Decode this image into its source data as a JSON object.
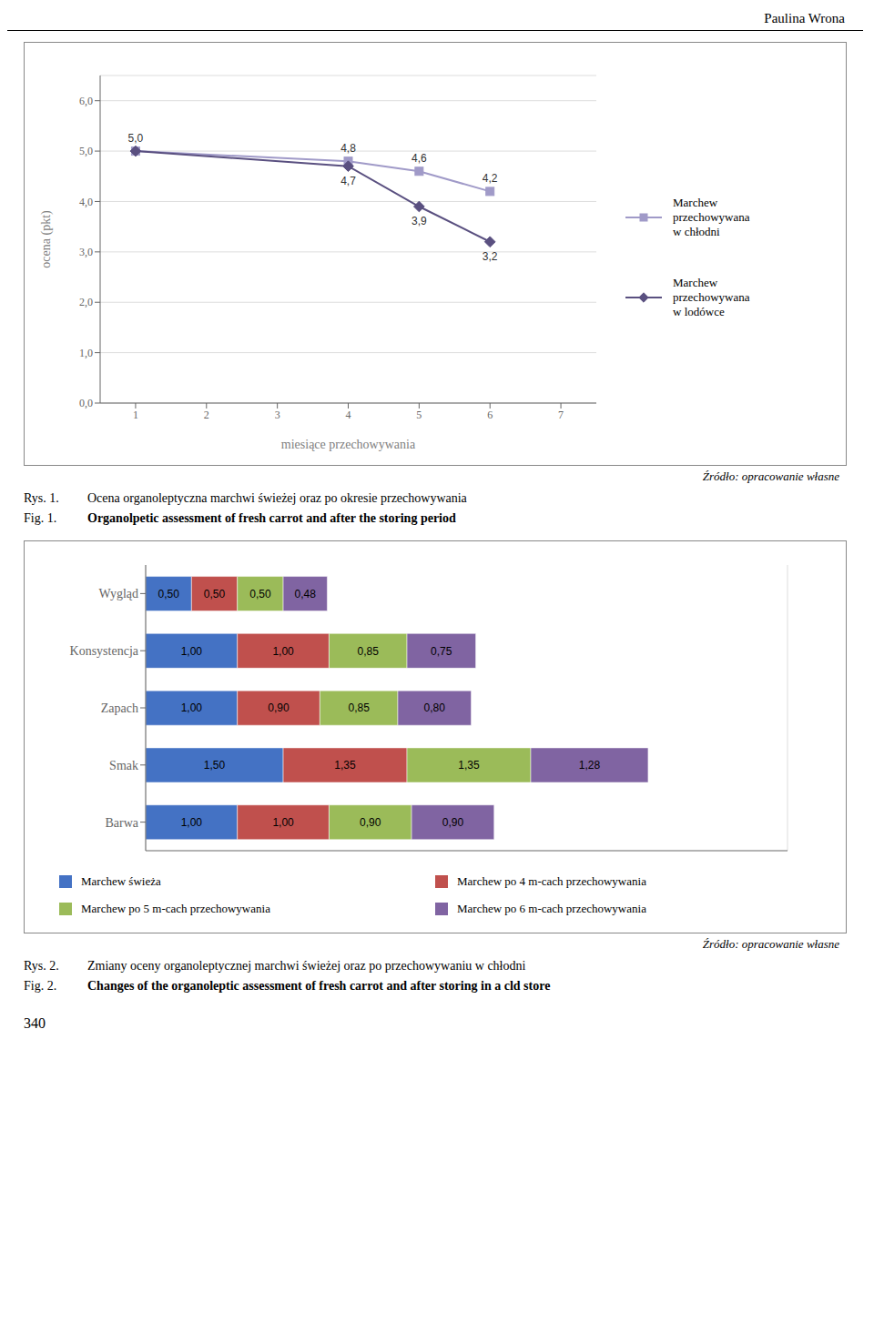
{
  "chart_data": [
    {
      "type": "line",
      "x": [
        1,
        4,
        5,
        6
      ],
      "series": [
        {
          "name": "Marchew\nprzechowywana\nw chłodni",
          "color": "#a09ac8",
          "marker": "square",
          "line_style": "solid",
          "values": [
            5.0,
            4.8,
            4.6,
            4.2
          ],
          "value_labels": [
            "5,0",
            "4,8",
            "4,6",
            "4,2"
          ]
        },
        {
          "name": "Marchew\nprzechowywana\nw lodówce",
          "color": "#5a5080",
          "marker": "diamond",
          "line_style": "solid",
          "values": [
            5.0,
            4.7,
            3.9,
            3.2
          ],
          "value_labels": [
            null,
            "4,7",
            "3,9",
            "3,2"
          ]
        }
      ],
      "x_label": "miesiące przechowywania",
      "y_label": "ocena (pkt)",
      "xlim": [
        0.5,
        7.5
      ],
      "xticks": [
        1,
        2,
        3,
        4,
        5,
        6,
        7
      ],
      "ylim": [
        0.0,
        6.5
      ],
      "yticks": [
        {
          "value": 0.0,
          "label": "0,0"
        },
        {
          "value": 1.0,
          "label": "1,0"
        },
        {
          "value": 2.0,
          "label": "2,0"
        },
        {
          "value": 3.0,
          "label": "3,0"
        },
        {
          "value": 4.0,
          "label": "4,0"
        },
        {
          "value": 5.0,
          "label": "5,0"
        },
        {
          "value": 6.0,
          "label": "6,0"
        }
      ],
      "grid": true,
      "legend": "right",
      "data_labels": true,
      "annotations": [
        "Paulina Wrona",
        "Źródło: opracowanie własne",
        "Rys. 1.",
        "Ocena organoleptyczna marchwi świeżej oraz po okresie przechowywania",
        "Fig. 1.",
        "Organolpetic assessment of fresh carrot and after the storing period"
      ]
    },
    {
      "type": "bar",
      "orientation": "horizontal",
      "stacked": true,
      "categories": [
        "Wygląd",
        "Konsystencja",
        "Zapach",
        "Smak",
        "Barwa"
      ],
      "series": [
        {
          "name": "Marchew świeża",
          "color": "#4472c4",
          "values": [
            0.5,
            1.0,
            1.0,
            1.5,
            1.0
          ],
          "value_labels": [
            "0,50",
            "1,00",
            "1,00",
            "1,50",
            "1,00"
          ]
        },
        {
          "name": "Marchew po 4 m-cach przechowywania",
          "color": "#c0504d",
          "values": [
            0.5,
            1.0,
            0.9,
            1.35,
            1.0
          ],
          "value_labels": [
            "0,50",
            "1,00",
            "0,90",
            "1,35",
            "1,00"
          ]
        },
        {
          "name": "Marchew po 5 m-cach przechowywania",
          "color": "#9bbb59",
          "values": [
            0.5,
            0.85,
            0.85,
            1.35,
            0.9
          ],
          "value_labels": [
            "0,50",
            "0,85",
            "0,85",
            "1,35",
            "0,90"
          ]
        },
        {
          "name": "Marchew po 6 m-cach przechowywania",
          "color": "#8064a2",
          "values": [
            0.48,
            0.75,
            0.8,
            1.28,
            0.9
          ],
          "value_labels": [
            "0,48",
            "0,75",
            "0,80",
            "1,28",
            "0,90"
          ]
        }
      ],
      "xlim": [
        0,
        7
      ],
      "xticks": [
        0,
        1,
        2,
        3,
        4,
        5,
        6,
        7
      ],
      "grid": true,
      "legend": "bottom",
      "data_labels": true,
      "tick_labels": "y",
      "annotations": [
        "Źródło: opracowanie własne",
        "Rys. 2.",
        "Zmiany oceny organoleptycznej marchwi świeżej oraz po przechowywaniu w chłodni",
        "Fig. 2.",
        "Changes of the organoleptic assessment of fresh carrot and after storing in a cld store",
        "340"
      ]
    }
  ]
}
